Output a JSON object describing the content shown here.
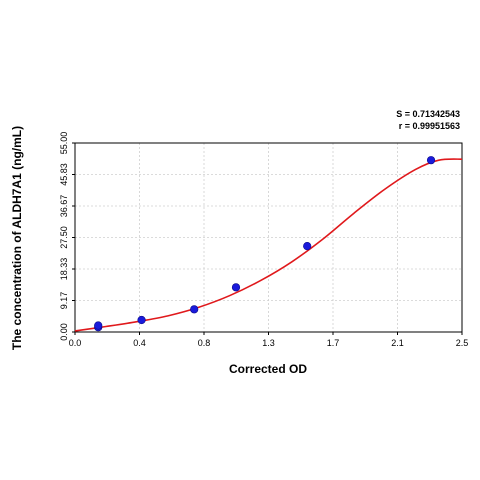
{
  "chart_data": {
    "type": "scatter",
    "xlabel": "Corrected OD",
    "ylabel": "The concentration of ALDH7A1 (ng/mL)",
    "x_ticks": [
      "0.0",
      "0.4",
      "0.8",
      "1.3",
      "1.7",
      "2.1",
      "2.5"
    ],
    "y_ticks": [
      "0.00",
      "9.17",
      "18.33",
      "27.50",
      "36.67",
      "45.83",
      "55.00"
    ],
    "xlim": [
      0,
      2.5
    ],
    "ylim": [
      0,
      55
    ],
    "grid": true,
    "annotations": {
      "s_value": "S = 0.71342543",
      "r_value": "r = 0.99951563"
    },
    "points": [
      {
        "x": 0.15,
        "y": 1.4
      },
      {
        "x": 0.15,
        "y": 1.9
      },
      {
        "x": 0.43,
        "y": 3.5
      },
      {
        "x": 0.77,
        "y": 6.6
      },
      {
        "x": 1.04,
        "y": 13.0
      },
      {
        "x": 1.5,
        "y": 25.0
      },
      {
        "x": 2.3,
        "y": 50.0
      }
    ],
    "fit_curve": [
      {
        "x": 0.0,
        "y": 0.3
      },
      {
        "x": 0.2,
        "y": 1.6
      },
      {
        "x": 0.4,
        "y": 3.0
      },
      {
        "x": 0.6,
        "y": 4.7
      },
      {
        "x": 0.8,
        "y": 7.2
      },
      {
        "x": 1.0,
        "y": 10.6
      },
      {
        "x": 1.2,
        "y": 15.0
      },
      {
        "x": 1.4,
        "y": 20.4
      },
      {
        "x": 1.6,
        "y": 27.0
      },
      {
        "x": 1.8,
        "y": 34.5
      },
      {
        "x": 2.0,
        "y": 41.5
      },
      {
        "x": 2.2,
        "y": 47.3
      },
      {
        "x": 2.35,
        "y": 50.0
      },
      {
        "x": 2.5,
        "y": 50.3
      }
    ],
    "colors": {
      "curve": "#e0191c",
      "points": "#1a1adb",
      "grid": "#cfcfcf",
      "axis": "#000000"
    }
  }
}
